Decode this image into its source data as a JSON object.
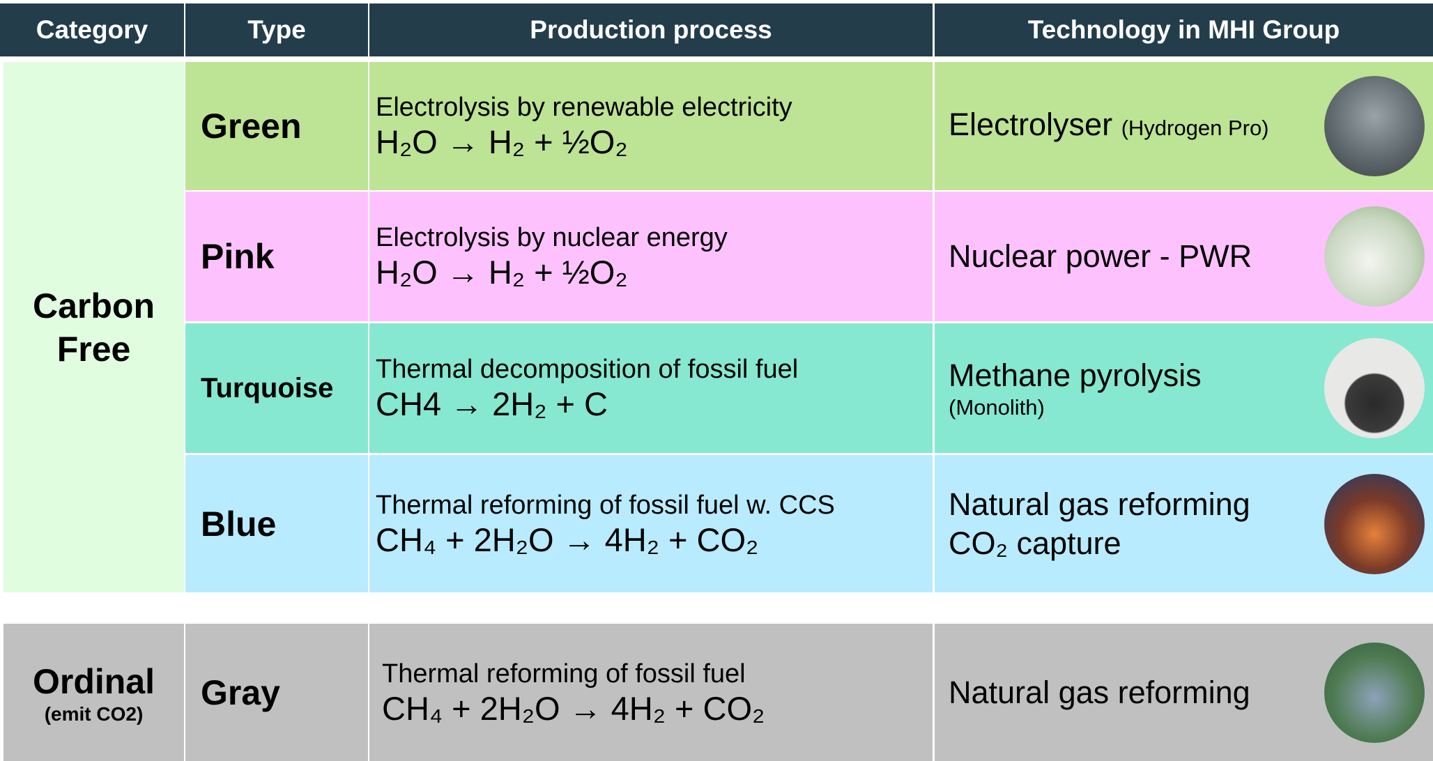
{
  "header": [
    "Category",
    "Type",
    "Production process",
    "Technology in MHI Group"
  ],
  "groups": [
    {
      "category": "Carbon Free",
      "rows": [
        {
          "type": "Green",
          "process": "Electrolysis by renewable electricity",
          "equation": "H₂O  →  H₂ + ½O₂",
          "technology": "Electrolyser",
          "note": "(Hydrogen Pro)"
        },
        {
          "type": "Pink",
          "process": "Electrolysis by nuclear energy",
          "equation": "H₂O  →  H₂ + ½O₂",
          "technology": "Nuclear power - PWR"
        },
        {
          "type": "Turquoise",
          "process": "Thermal decomposition of fossil fuel",
          "equation": "CH4  →  2H₂ + C",
          "technology": "Methane pyrolysis",
          "note": "(Monolith)"
        },
        {
          "type": "Blue",
          "process": "Thermal reforming of fossil fuel w. CCS",
          "equation": "CH₄ + 2H₂O →  4H₂ + CO₂",
          "technology": "Natural gas reforming",
          "line2": "CO₂ capture"
        }
      ]
    },
    {
      "category": "Ordinal",
      "category_note": "(emit CO2)",
      "rows": [
        {
          "type": "Gray",
          "process": "Thermal reforming of fossil fuel",
          "equation": "CH₄ + 2H₂O →  4H₂ + CO₂",
          "technology": "Natural gas reforming"
        }
      ]
    }
  ]
}
